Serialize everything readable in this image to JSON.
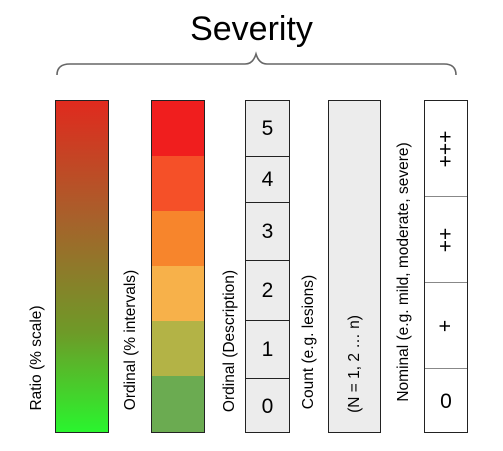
{
  "title": "Severity",
  "columns": {
    "ratio": {
      "label": "Ratio (% scale)"
    },
    "ordinal_intervals": {
      "label": "Ordinal (% intervals)",
      "bands_top_to_bottom": [
        "#f01e1e",
        "#f55028",
        "#f7852c",
        "#f7b14a",
        "#b3b346",
        "#6bab51"
      ]
    },
    "ordinal_description": {
      "label": "Ordinal (Description)",
      "values_top_to_bottom": [
        "5",
        "4",
        "3",
        "2",
        "1",
        "0"
      ]
    },
    "count": {
      "label": "Count (e.g. lesions)",
      "inner_label": "(N = 1, 2 … n)"
    },
    "nominal": {
      "label": "Nominal (e.g. mild, moderate, severe)",
      "values_top_to_bottom": [
        "+++",
        "++",
        "+",
        "0"
      ]
    }
  }
}
